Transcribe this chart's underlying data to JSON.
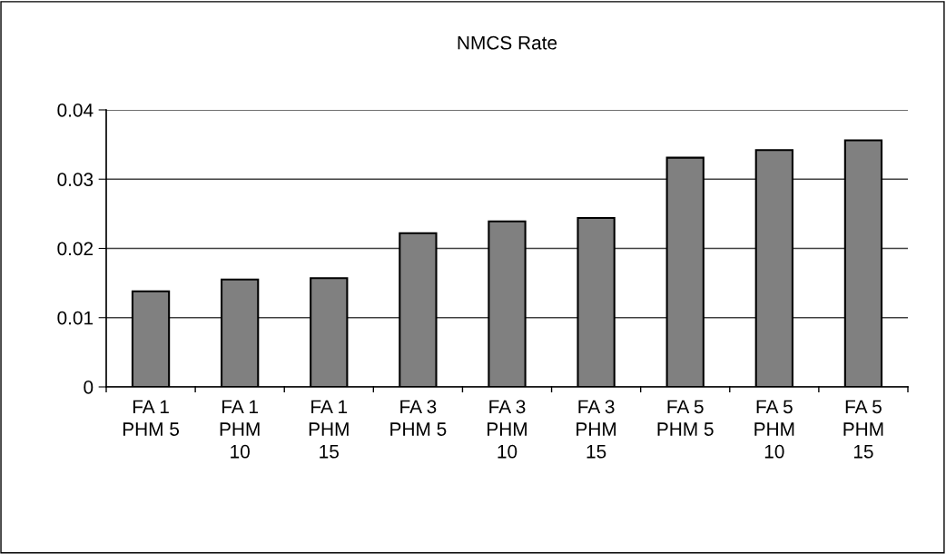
{
  "chart_data": {
    "type": "bar",
    "title": "NMCS Rate",
    "categories": [
      "FA 1\nPHM 5",
      "FA 1\nPHM\n10",
      "FA 1\nPHM\n15",
      "FA 3\nPHM 5",
      "FA 3\nPHM\n10",
      "FA 3\nPHM\n15",
      "FA 5\nPHM 5",
      "FA 5\nPHM\n10",
      "FA 5\nPHM\n15"
    ],
    "values": [
      0.0138,
      0.0155,
      0.0157,
      0.0222,
      0.0239,
      0.0244,
      0.0331,
      0.0342,
      0.0356
    ],
    "color": "#808080",
    "ylim": [
      0,
      0.04
    ],
    "yticks": [
      0,
      0.01,
      0.02,
      0.03,
      0.04
    ],
    "grid": "y",
    "legend": false
  }
}
